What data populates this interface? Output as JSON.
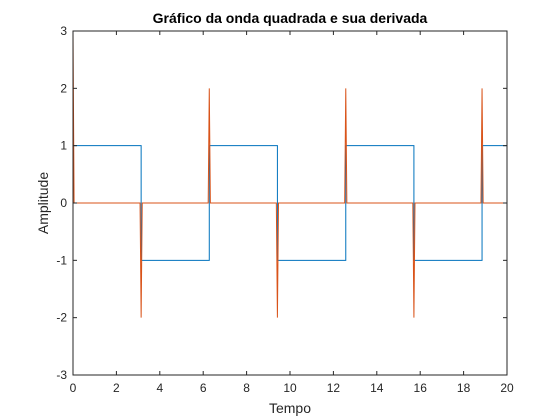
{
  "chart_data": {
    "type": "line",
    "title": "Gráfico da onda quadrada e sua derivada",
    "xlabel": "Tempo",
    "ylabel": "Amplitude",
    "xlim": [
      0,
      20
    ],
    "ylim": [
      -3,
      3
    ],
    "xticks": [
      0,
      2,
      4,
      6,
      8,
      10,
      12,
      14,
      16,
      18,
      20
    ],
    "yticks": [
      -3,
      -2,
      -1,
      0,
      1,
      2,
      3
    ],
    "grid": false,
    "legend": "none",
    "series": [
      {
        "color": "#0072BD",
        "x": [
          0,
          3.14,
          3.14,
          6.28,
          6.28,
          9.42,
          9.42,
          12.57,
          12.57,
          15.71,
          15.71,
          18.85,
          18.85,
          20
        ],
        "y": [
          1,
          1,
          -1,
          -1,
          1,
          1,
          -1,
          -1,
          1,
          1,
          -1,
          -1,
          1,
          1
        ]
      },
      {
        "color": "#D95319",
        "x": [
          0,
          0,
          0.05,
          3.09,
          3.14,
          3.19,
          6.23,
          6.28,
          6.33,
          9.37,
          9.42,
          9.47,
          12.52,
          12.57,
          12.62,
          15.66,
          15.71,
          15.76,
          18.8,
          18.85,
          18.9,
          20
        ],
        "y": [
          3,
          3,
          0,
          0,
          -2,
          0,
          0,
          2,
          0,
          0,
          -2,
          0,
          0,
          2,
          0,
          0,
          -2,
          0,
          0,
          2,
          0,
          0
        ]
      }
    ]
  }
}
